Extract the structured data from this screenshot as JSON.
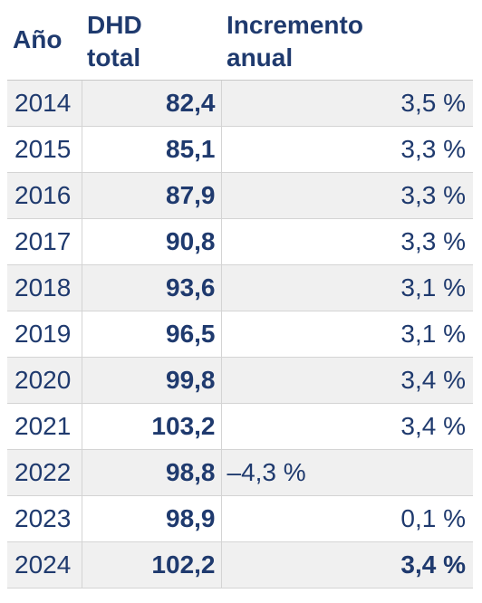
{
  "headers": {
    "year": "Año",
    "dhd_line1": "DHD",
    "dhd_line2": "total",
    "inc_line1": "Incremento",
    "inc_line2": "anual"
  },
  "rows": [
    {
      "year": "2014",
      "dhd": "82,4",
      "inc": "3,5 %",
      "align": "right",
      "bold_inc": false,
      "shaded": true
    },
    {
      "year": "2015",
      "dhd": "85,1",
      "inc": "3,3 %",
      "align": "right",
      "bold_inc": false,
      "shaded": false
    },
    {
      "year": "2016",
      "dhd": "87,9",
      "inc": "3,3 %",
      "align": "right",
      "bold_inc": false,
      "shaded": true
    },
    {
      "year": "2017",
      "dhd": "90,8",
      "inc": "3,3 %",
      "align": "right",
      "bold_inc": false,
      "shaded": false
    },
    {
      "year": "2018",
      "dhd": "93,6",
      "inc": "3,1 %",
      "align": "right",
      "bold_inc": false,
      "shaded": true
    },
    {
      "year": "2019",
      "dhd": "96,5",
      "inc": "3,1 %",
      "align": "right",
      "bold_inc": false,
      "shaded": false
    },
    {
      "year": "2020",
      "dhd": "99,8",
      "inc": "3,4 %",
      "align": "right",
      "bold_inc": false,
      "shaded": true
    },
    {
      "year": "2021",
      "dhd": "103,2",
      "inc": "3,4 %",
      "align": "right",
      "bold_inc": false,
      "shaded": false
    },
    {
      "year": "2022",
      "dhd": "98,8",
      "inc": "–4,3 %",
      "align": "left",
      "bold_inc": false,
      "shaded": true
    },
    {
      "year": "2023",
      "dhd": "98,9",
      "inc": "0,1 %",
      "align": "right",
      "bold_inc": false,
      "shaded": false
    },
    {
      "year": "2024",
      "dhd": "102,2",
      "inc": "3,4 %",
      "align": "right",
      "bold_inc": true,
      "shaded": true
    }
  ],
  "colors": {
    "text": "#1f3a6e",
    "row_shade": "#f0f0f0",
    "grid": "#d4d4d4"
  }
}
